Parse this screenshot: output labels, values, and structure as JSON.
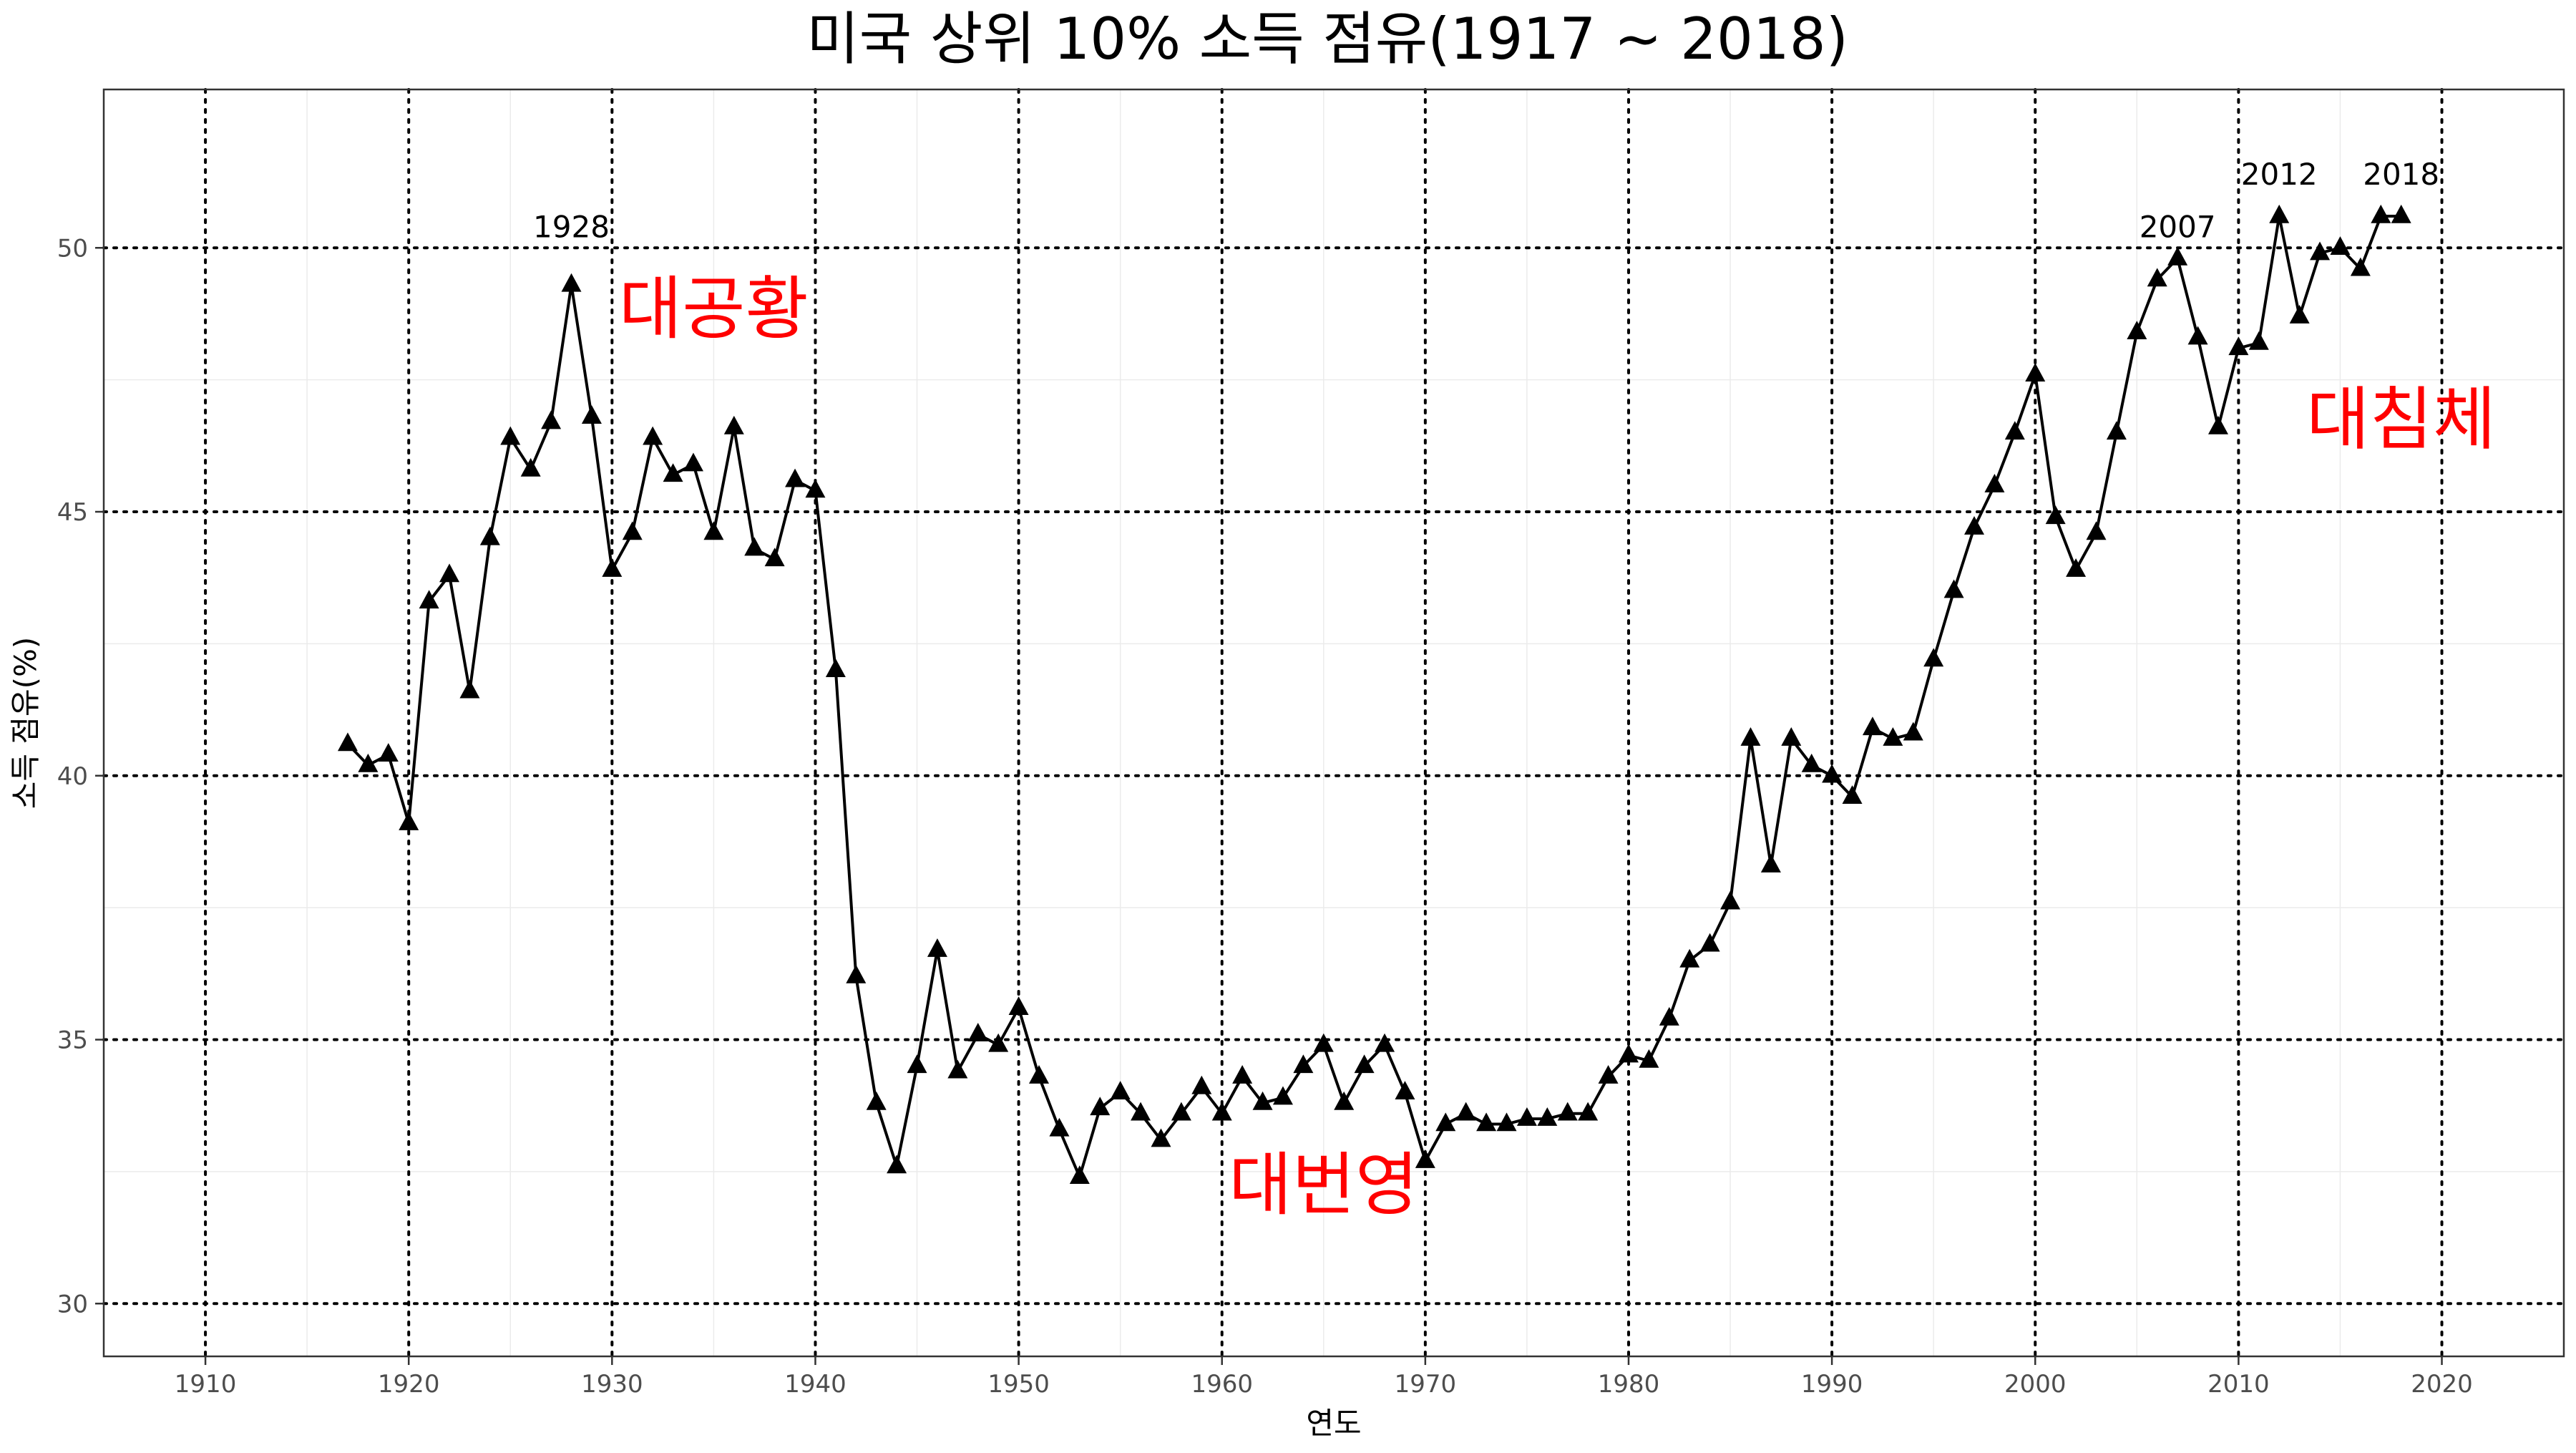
{
  "chart_data": {
    "type": "line",
    "title": "미국 상위 10% 소득 점유(1917 ~ 2018)",
    "xlabel": "연도",
    "ylabel": "소득 점유(%)",
    "xlim": [
      1905,
      2026
    ],
    "ylim": [
      29,
      53
    ],
    "x_ticks": [
      1910,
      1920,
      1930,
      1940,
      1950,
      1960,
      1970,
      1980,
      1990,
      2000,
      2010,
      2020
    ],
    "y_ticks": [
      30,
      35,
      40,
      45,
      50
    ],
    "grid": true,
    "marker": "triangle",
    "series": [
      {
        "x": [
          1917,
          1918,
          1919,
          1920,
          1921,
          1922,
          1923,
          1924,
          1925,
          1926,
          1927,
          1928,
          1929,
          1930,
          1931,
          1932,
          1933,
          1934,
          1935,
          1936,
          1937,
          1938,
          1939,
          1940,
          1941,
          1942,
          1943,
          1944,
          1945,
          1946,
          1947,
          1948,
          1949,
          1950,
          1951,
          1952,
          1953,
          1954,
          1955,
          1956,
          1957,
          1958,
          1959,
          1960,
          1961,
          1962,
          1963,
          1964,
          1965,
          1966,
          1967,
          1968,
          1969,
          1970,
          1971,
          1972,
          1973,
          1974,
          1975,
          1976,
          1977,
          1978,
          1979,
          1980,
          1981,
          1982,
          1983,
          1984,
          1985,
          1986,
          1987,
          1988,
          1989,
          1990,
          1991,
          1992,
          1993,
          1994,
          1995,
          1996,
          1997,
          1998,
          1999,
          2000,
          2001,
          2002,
          2003,
          2004,
          2005,
          2006,
          2007,
          2008,
          2009,
          2010,
          2011,
          2012,
          2013,
          2014,
          2015,
          2016,
          2017,
          2018
        ],
        "values": [
          40.6,
          40.2,
          40.4,
          39.1,
          43.3,
          43.8,
          41.6,
          44.5,
          46.4,
          45.8,
          46.7,
          49.3,
          46.8,
          43.9,
          44.6,
          46.4,
          45.7,
          45.9,
          44.6,
          46.6,
          44.3,
          44.1,
          45.6,
          45.4,
          42.0,
          36.2,
          33.8,
          32.6,
          34.5,
          36.7,
          34.4,
          35.1,
          34.9,
          35.6,
          34.3,
          33.3,
          32.4,
          33.7,
          34.0,
          33.6,
          33.1,
          33.6,
          34.1,
          33.6,
          34.3,
          33.8,
          33.9,
          34.5,
          34.9,
          33.8,
          34.5,
          34.9,
          34.0,
          32.7,
          33.4,
          33.6,
          33.4,
          33.4,
          33.5,
          33.5,
          33.6,
          33.6,
          34.3,
          34.7,
          34.6,
          35.4,
          36.5,
          36.8,
          37.6,
          40.7,
          38.3,
          40.7,
          40.2,
          40.0,
          39.6,
          40.9,
          40.7,
          40.8,
          42.2,
          43.5,
          44.7,
          45.5,
          46.5,
          47.6,
          44.9,
          43.9,
          44.6,
          46.5,
          48.4,
          49.4,
          49.8,
          48.3,
          46.6,
          48.1,
          48.2,
          50.6,
          48.7,
          49.9,
          50.0,
          49.6,
          50.6,
          50.6
        ]
      }
    ],
    "annotations": {
      "year_labels": [
        {
          "text": "1928",
          "x": 1928,
          "y": 50.2
        },
        {
          "text": "2007",
          "x": 2007,
          "y": 50.2
        },
        {
          "text": "2012",
          "x": 2012,
          "y": 51.2
        },
        {
          "text": "2018",
          "x": 2018,
          "y": 51.2
        }
      ],
      "events": [
        {
          "text": "대공황",
          "x": 1935,
          "y": 48.4
        },
        {
          "text": "대번영",
          "x": 1965,
          "y": 31.8
        },
        {
          "text": "대침체",
          "x": 2018,
          "y": 46.3
        }
      ],
      "event_color": "#ff0000"
    }
  }
}
